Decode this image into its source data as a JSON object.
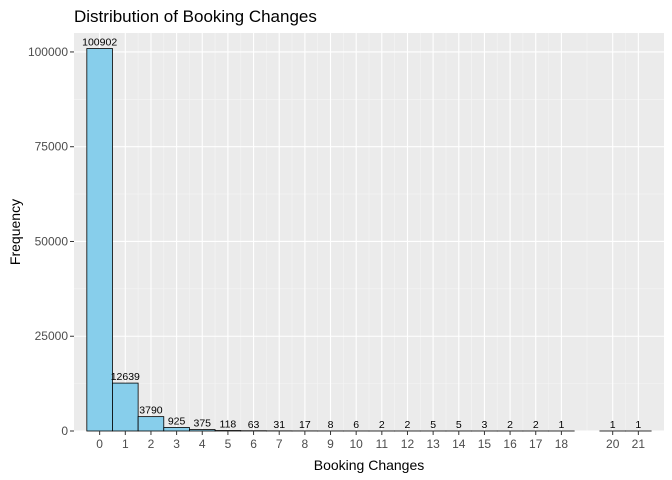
{
  "chart_data": {
    "type": "bar",
    "title": "Distribution of Booking Changes",
    "xlabel": "Booking Changes",
    "ylabel": "Frequency",
    "ylim": [
      0,
      105000
    ],
    "xlim": [
      -1,
      22
    ],
    "y_ticks": [
      {
        "value": 0,
        "label": "0"
      },
      {
        "value": 25000,
        "label": "25000"
      },
      {
        "value": 50000,
        "label": "50000"
      },
      {
        "value": 75000,
        "label": "75000"
      },
      {
        "value": 100000,
        "label": "100000"
      }
    ],
    "x_ticks": [
      0,
      1,
      2,
      3,
      4,
      5,
      6,
      7,
      8,
      9,
      10,
      11,
      12,
      13,
      14,
      15,
      16,
      17,
      18,
      20,
      21
    ],
    "bars": [
      {
        "x": 0,
        "value": 100902
      },
      {
        "x": 1,
        "value": 12639
      },
      {
        "x": 2,
        "value": 3790
      },
      {
        "x": 3,
        "value": 925
      },
      {
        "x": 4,
        "value": 375
      },
      {
        "x": 5,
        "value": 118
      },
      {
        "x": 6,
        "value": 63
      },
      {
        "x": 7,
        "value": 31
      },
      {
        "x": 8,
        "value": 17
      },
      {
        "x": 9,
        "value": 8
      },
      {
        "x": 10,
        "value": 6
      },
      {
        "x": 11,
        "value": 2
      },
      {
        "x": 12,
        "value": 2
      },
      {
        "x": 13,
        "value": 5
      },
      {
        "x": 14,
        "value": 5
      },
      {
        "x": 15,
        "value": 3
      },
      {
        "x": 16,
        "value": 2
      },
      {
        "x": 17,
        "value": 2
      },
      {
        "x": 18,
        "value": 1
      },
      {
        "x": 20,
        "value": 1
      },
      {
        "x": 21,
        "value": 1
      }
    ],
    "colors": {
      "bar_fill": "#87ceeb",
      "bar_stroke": "#000000",
      "panel_background": "#ebebeb"
    },
    "grid": true,
    "legend": "none"
  }
}
